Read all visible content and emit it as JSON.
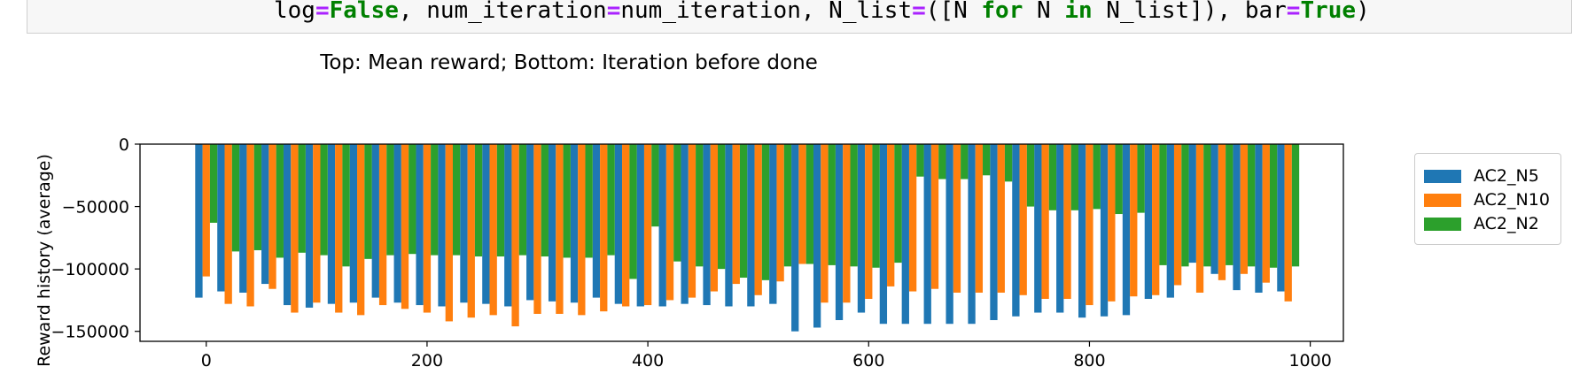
{
  "code": {
    "line_tokens": [
      {
        "t": "log",
        "c": ""
      },
      {
        "t": "=",
        "c": "op"
      },
      {
        "t": "False",
        "c": "kw"
      },
      {
        "t": ", num_iteration",
        "c": ""
      },
      {
        "t": "=",
        "c": "op"
      },
      {
        "t": "num_iteration, N_list",
        "c": ""
      },
      {
        "t": "=",
        "c": "op"
      },
      {
        "t": "([N ",
        "c": ""
      },
      {
        "t": "for",
        "c": "kw"
      },
      {
        "t": " N ",
        "c": ""
      },
      {
        "t": "in",
        "c": "kw"
      },
      {
        "t": " N_list]), bar",
        "c": ""
      },
      {
        "t": "=",
        "c": "op"
      },
      {
        "t": "True",
        "c": "kw"
      },
      {
        "t": ")",
        "c": ""
      }
    ]
  },
  "figure_title": "Top: Mean reward; Bottom: Iteration before done",
  "colors": {
    "AC2_N5": "#1f77b4",
    "AC2_N10": "#ff7f0e",
    "AC2_N2": "#2ca02c"
  },
  "chart_data": {
    "type": "bar",
    "ylabel": "Reward history (average)",
    "xlabel": "",
    "xlim": [
      -60,
      1030
    ],
    "ylim": [
      -158000,
      0
    ],
    "x_ticks": [
      0,
      200,
      400,
      600,
      800,
      1000
    ],
    "y_ticks": [
      0,
      -50000,
      -100000,
      -150000
    ],
    "y_tick_labels": [
      "0",
      "−50000",
      "−100000",
      "−150000"
    ],
    "legend_position": "right-outside",
    "x": [
      0,
      20,
      40,
      60,
      80,
      100,
      120,
      140,
      160,
      180,
      200,
      220,
      240,
      260,
      280,
      300,
      320,
      340,
      360,
      380,
      400,
      420,
      440,
      460,
      480,
      500,
      520,
      540,
      560,
      580,
      600,
      620,
      640,
      660,
      680,
      700,
      720,
      740,
      760,
      780,
      800,
      820,
      840,
      860,
      880,
      900,
      920,
      940,
      960,
      980
    ],
    "series": [
      {
        "name": "AC2_N5",
        "values": [
          -123000,
          -118000,
          -119000,
          -112000,
          -129000,
          -131000,
          -128000,
          -127000,
          -123000,
          -127000,
          -129000,
          -130000,
          -127000,
          -128000,
          -130000,
          -125000,
          -126000,
          -127000,
          -123000,
          -128000,
          -130000,
          -130000,
          -128000,
          -129000,
          -130000,
          -130000,
          -128000,
          -150000,
          -147000,
          -141000,
          -135000,
          -144000,
          -144000,
          -144000,
          -144000,
          -144000,
          -141000,
          -138000,
          -135000,
          -135000,
          -139000,
          -138000,
          -137000,
          -124000,
          -123000,
          -95000,
          -104000,
          -117000,
          -119000,
          -118000
        ]
      },
      {
        "name": "AC2_N10",
        "values": [
          -106000,
          -128000,
          -130000,
          -116000,
          -135000,
          -127000,
          -135000,
          -137000,
          -129000,
          -132000,
          -135000,
          -142000,
          -139000,
          -137000,
          -146000,
          -136000,
          -136000,
          -137000,
          -134000,
          -130000,
          -129000,
          -125000,
          -123000,
          -118000,
          -112000,
          -121000,
          -110000,
          -96000,
          -127000,
          -127000,
          -124000,
          -114000,
          -118000,
          -116000,
          -119000,
          -119000,
          -119000,
          -121000,
          -124000,
          -124000,
          -129000,
          -126000,
          -122000,
          -121000,
          -113000,
          -119000,
          -109000,
          -104000,
          -111000,
          -126000
        ]
      },
      {
        "name": "AC2_N2",
        "values": [
          -63000,
          -86000,
          -85000,
          -91000,
          -87000,
          -89000,
          -98000,
          -92000,
          -89000,
          -88000,
          -89000,
          -89000,
          -90000,
          -90000,
          -89000,
          -90000,
          -91000,
          -91000,
          -89000,
          -108000,
          -66000,
          -94000,
          -98000,
          -100000,
          -107000,
          -109000,
          -98000,
          -96000,
          -97000,
          -98000,
          -99000,
          -95000,
          -26000,
          -28000,
          -28000,
          -25000,
          -30000,
          -50000,
          -53000,
          -53000,
          -52000,
          -56000,
          -55000,
          -97000,
          -98000,
          -98000,
          -97000,
          -98000,
          -99000,
          -98000
        ]
      }
    ]
  }
}
